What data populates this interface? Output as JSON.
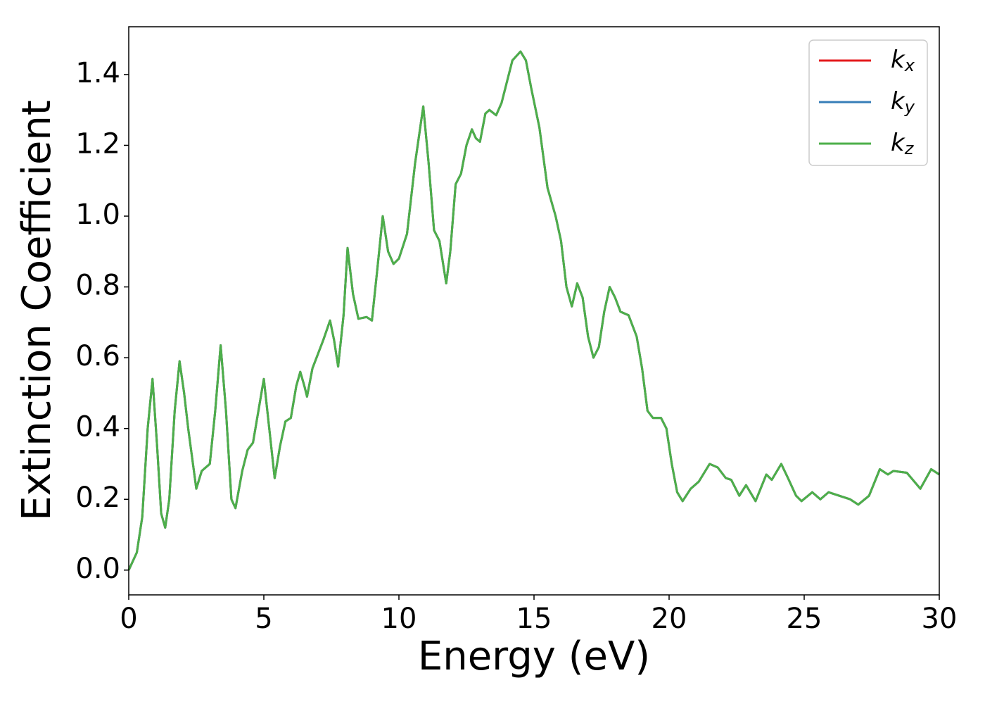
{
  "chart_data": {
    "type": "line",
    "xlabel": "Energy (eV)",
    "ylabel": "Extinction Coefficient",
    "x": [
      0,
      0.3,
      0.5,
      0.7,
      0.88,
      1.05,
      1.2,
      1.35,
      1.5,
      1.7,
      1.88,
      2.05,
      2.2,
      2.5,
      2.7,
      2.85,
      3.0,
      3.2,
      3.4,
      3.6,
      3.8,
      3.95,
      4.2,
      4.4,
      4.6,
      4.8,
      5.0,
      5.2,
      5.4,
      5.6,
      5.8,
      6.0,
      6.2,
      6.35,
      6.5,
      6.6,
      6.8,
      7.0,
      7.2,
      7.45,
      7.6,
      7.75,
      7.95,
      8.1,
      8.3,
      8.5,
      8.8,
      9.0,
      9.2,
      9.4,
      9.6,
      9.8,
      10.0,
      10.3,
      10.6,
      10.9,
      11.1,
      11.3,
      11.5,
      11.75,
      11.9,
      12.1,
      12.3,
      12.5,
      12.7,
      12.85,
      13.0,
      13.2,
      13.35,
      13.6,
      13.8,
      14.0,
      14.2,
      14.5,
      14.7,
      14.9,
      15.2,
      15.5,
      15.8,
      16.0,
      16.2,
      16.4,
      16.6,
      16.8,
      17.0,
      17.2,
      17.4,
      17.6,
      17.8,
      18.0,
      18.2,
      18.5,
      18.8,
      19.0,
      19.2,
      19.4,
      19.7,
      19.9,
      20.1,
      20.3,
      20.5,
      20.8,
      21.1,
      21.5,
      21.8,
      22.1,
      22.3,
      22.6,
      22.85,
      23.2,
      23.6,
      23.8,
      24.15,
      24.4,
      24.7,
      24.9,
      25.3,
      25.6,
      25.9,
      26.3,
      26.7,
      27.0,
      27.4,
      27.8,
      28.1,
      28.3,
      28.8,
      29.3,
      29.7,
      30.0
    ],
    "series": [
      {
        "name": "kx",
        "color": "#e41a1c",
        "values": [
          0,
          0.05,
          0.15,
          0.4,
          0.54,
          0.35,
          0.16,
          0.12,
          0.2,
          0.45,
          0.59,
          0.5,
          0.4,
          0.23,
          0.28,
          0.29,
          0.3,
          0.45,
          0.635,
          0.45,
          0.2,
          0.175,
          0.28,
          0.34,
          0.36,
          0.45,
          0.54,
          0.4,
          0.26,
          0.35,
          0.42,
          0.43,
          0.52,
          0.56,
          0.52,
          0.49,
          0.57,
          0.61,
          0.65,
          0.705,
          0.65,
          0.575,
          0.72,
          0.91,
          0.78,
          0.71,
          0.715,
          0.705,
          0.85,
          1.0,
          0.9,
          0.865,
          0.88,
          0.95,
          1.15,
          1.31,
          1.15,
          0.96,
          0.93,
          0.81,
          0.9,
          1.09,
          1.12,
          1.2,
          1.245,
          1.22,
          1.21,
          1.29,
          1.3,
          1.285,
          1.32,
          1.38,
          1.44,
          1.465,
          1.44,
          1.36,
          1.25,
          1.08,
          1.0,
          0.93,
          0.8,
          0.745,
          0.81,
          0.77,
          0.66,
          0.6,
          0.63,
          0.73,
          0.8,
          0.77,
          0.73,
          0.72,
          0.66,
          0.57,
          0.45,
          0.43,
          0.43,
          0.4,
          0.3,
          0.22,
          0.195,
          0.23,
          0.25,
          0.3,
          0.29,
          0.26,
          0.255,
          0.21,
          0.24,
          0.195,
          0.27,
          0.255,
          0.3,
          0.26,
          0.21,
          0.195,
          0.22,
          0.2,
          0.22,
          0.21,
          0.2,
          0.185,
          0.21,
          0.285,
          0.27,
          0.28,
          0.275,
          0.23,
          0.285,
          0.27
        ]
      },
      {
        "name": "ky",
        "color": "#377eb8",
        "values": [
          0,
          0.05,
          0.15,
          0.4,
          0.54,
          0.35,
          0.16,
          0.12,
          0.2,
          0.45,
          0.59,
          0.5,
          0.4,
          0.23,
          0.28,
          0.29,
          0.3,
          0.45,
          0.635,
          0.45,
          0.2,
          0.175,
          0.28,
          0.34,
          0.36,
          0.45,
          0.54,
          0.4,
          0.26,
          0.35,
          0.42,
          0.43,
          0.52,
          0.56,
          0.52,
          0.49,
          0.57,
          0.61,
          0.65,
          0.705,
          0.65,
          0.575,
          0.72,
          0.91,
          0.78,
          0.71,
          0.715,
          0.705,
          0.85,
          1.0,
          0.9,
          0.865,
          0.88,
          0.95,
          1.15,
          1.31,
          1.15,
          0.96,
          0.93,
          0.81,
          0.9,
          1.09,
          1.12,
          1.2,
          1.245,
          1.22,
          1.21,
          1.29,
          1.3,
          1.285,
          1.32,
          1.38,
          1.44,
          1.465,
          1.44,
          1.36,
          1.25,
          1.08,
          1.0,
          0.93,
          0.8,
          0.745,
          0.81,
          0.77,
          0.66,
          0.6,
          0.63,
          0.73,
          0.8,
          0.77,
          0.73,
          0.72,
          0.66,
          0.57,
          0.45,
          0.43,
          0.43,
          0.4,
          0.3,
          0.22,
          0.195,
          0.23,
          0.25,
          0.3,
          0.29,
          0.26,
          0.255,
          0.21,
          0.24,
          0.195,
          0.27,
          0.255,
          0.3,
          0.26,
          0.21,
          0.195,
          0.22,
          0.2,
          0.22,
          0.21,
          0.2,
          0.185,
          0.21,
          0.285,
          0.27,
          0.28,
          0.275,
          0.23,
          0.285,
          0.27
        ]
      },
      {
        "name": "kz",
        "color": "#4daf4a",
        "values": [
          0,
          0.05,
          0.15,
          0.4,
          0.54,
          0.35,
          0.16,
          0.12,
          0.2,
          0.45,
          0.59,
          0.5,
          0.4,
          0.23,
          0.28,
          0.29,
          0.3,
          0.45,
          0.635,
          0.45,
          0.2,
          0.175,
          0.28,
          0.34,
          0.36,
          0.45,
          0.54,
          0.4,
          0.26,
          0.35,
          0.42,
          0.43,
          0.52,
          0.56,
          0.52,
          0.49,
          0.57,
          0.61,
          0.65,
          0.705,
          0.65,
          0.575,
          0.72,
          0.91,
          0.78,
          0.71,
          0.715,
          0.705,
          0.85,
          1.0,
          0.9,
          0.865,
          0.88,
          0.95,
          1.15,
          1.31,
          1.15,
          0.96,
          0.93,
          0.81,
          0.9,
          1.09,
          1.12,
          1.2,
          1.245,
          1.22,
          1.21,
          1.29,
          1.3,
          1.285,
          1.32,
          1.38,
          1.44,
          1.465,
          1.44,
          1.36,
          1.25,
          1.08,
          1.0,
          0.93,
          0.8,
          0.745,
          0.81,
          0.77,
          0.66,
          0.6,
          0.63,
          0.73,
          0.8,
          0.77,
          0.73,
          0.72,
          0.66,
          0.57,
          0.45,
          0.43,
          0.43,
          0.4,
          0.3,
          0.22,
          0.195,
          0.23,
          0.25,
          0.3,
          0.29,
          0.26,
          0.255,
          0.21,
          0.24,
          0.195,
          0.27,
          0.255,
          0.3,
          0.26,
          0.21,
          0.195,
          0.22,
          0.2,
          0.22,
          0.21,
          0.2,
          0.185,
          0.21,
          0.285,
          0.27,
          0.28,
          0.275,
          0.23,
          0.285,
          0.27
        ]
      }
    ],
    "xlim": [
      0,
      30
    ],
    "xticks": [
      0,
      5,
      10,
      15,
      20,
      25,
      30
    ],
    "ylim": [
      -0.07,
      1.535
    ],
    "yticks": [
      {
        "value": 0,
        "label": "0.0"
      },
      0.2,
      0.4,
      0.6,
      0.8,
      {
        "value": 1,
        "label": "1.0"
      },
      1.2,
      1.4
    ],
    "grid": false,
    "legend": "upper right"
  }
}
